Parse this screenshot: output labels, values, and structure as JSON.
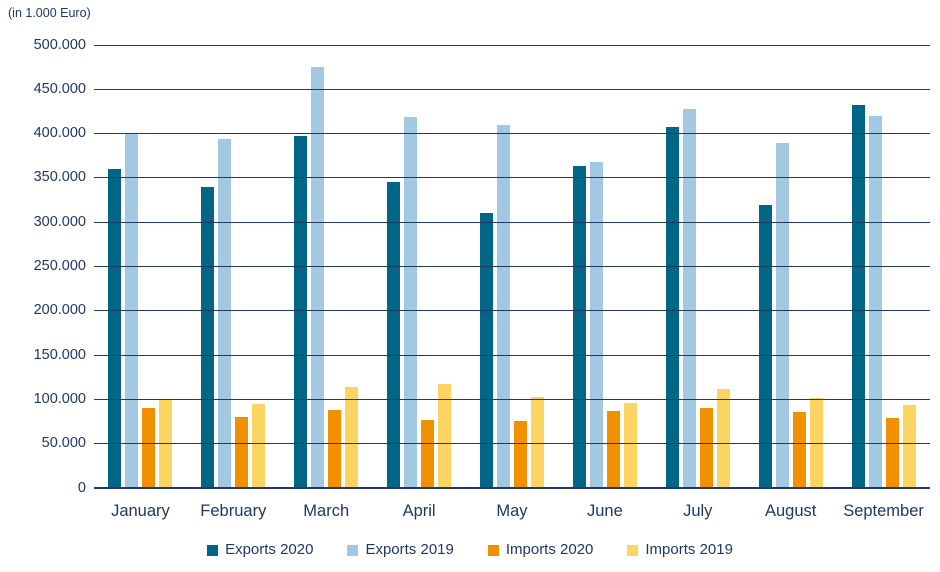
{
  "title": "(in 1.000 Euro)",
  "colors": {
    "text": "#1F3864",
    "gridline": "#1F3864",
    "background": "#FFFFFF",
    "exports_2020": "#006685",
    "exports_2019": "#A3C9E2",
    "imports_2020": "#F29100",
    "imports_2019": "#FCD462"
  },
  "chart_data": {
    "type": "bar",
    "title": "(in 1.000 Euro)",
    "categories": [
      "January",
      "February",
      "March",
      "April",
      "May",
      "June",
      "July",
      "August",
      "September"
    ],
    "series": [
      {
        "name": "Exports 2020",
        "color": "#006685",
        "values": [
          360000,
          340000,
          397000,
          345000,
          310000,
          364000,
          407000,
          319000,
          432000
        ]
      },
      {
        "name": "Exports 2019",
        "color": "#A3C9E2",
        "values": [
          400000,
          394000,
          475000,
          419000,
          410000,
          368000,
          428000,
          389000,
          420000
        ]
      },
      {
        "name": "Imports 2020",
        "color": "#F29100",
        "values": [
          90000,
          80000,
          88000,
          77000,
          76000,
          87000,
          90000,
          86000,
          79000
        ]
      },
      {
        "name": "Imports 2019",
        "color": "#FCD462",
        "values": [
          100000,
          95000,
          114000,
          117000,
          103000,
          96000,
          112000,
          102000,
          94000
        ]
      }
    ],
    "xlabel": "",
    "ylabel": "(in 1.000 Euro)",
    "ylim": [
      0,
      500000
    ],
    "y_tick_step": 50000,
    "y_tick_labels": [
      "0",
      "50.000",
      "100.000",
      "150.000",
      "200.000",
      "250.000",
      "300.000",
      "350.000",
      "400.000",
      "450.000",
      "500.000"
    ],
    "grid": true,
    "gridlines_over_bars": true,
    "legend_position": "bottom"
  }
}
